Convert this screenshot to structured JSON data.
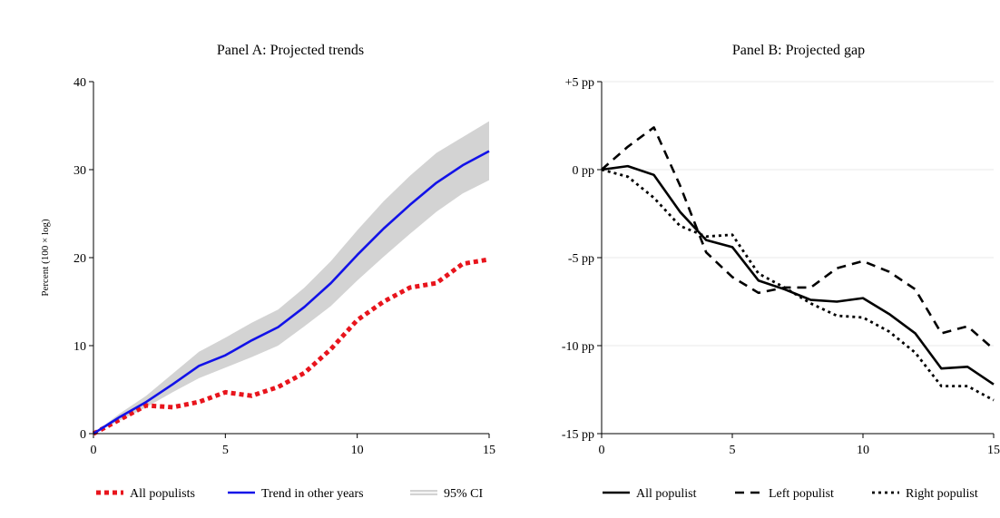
{
  "chart_data": [
    {
      "type": "line",
      "title": "Panel A: Projected trends",
      "xlabel": "",
      "ylabel": "Percent (100 × log)",
      "xlim": [
        0,
        15
      ],
      "ylim": [
        0,
        40
      ],
      "x_ticks": [
        "0",
        "5",
        "10",
        "15"
      ],
      "y_ticks": [
        "0",
        "10",
        "20",
        "30",
        "40"
      ],
      "legend_position": "bottom",
      "x": [
        0,
        1,
        2,
        3,
        4,
        5,
        6,
        7,
        8,
        9,
        10,
        11,
        12,
        13,
        14,
        15
      ],
      "series": [
        {
          "name": "All populists",
          "style": "dotted-thick",
          "color": "#e8141c",
          "values": [
            0,
            1.6,
            3.2,
            3.0,
            3.6,
            4.7,
            4.3,
            5.3,
            6.9,
            9.6,
            12.9,
            15.0,
            16.6,
            17.1,
            19.3,
            19.8
          ]
        },
        {
          "name": "Trend in other years",
          "style": "solid",
          "color": "#1212e8",
          "values": [
            0,
            1.9,
            3.6,
            5.6,
            7.7,
            8.9,
            10.6,
            12.1,
            14.4,
            17.1,
            20.3,
            23.3,
            26.0,
            28.5,
            30.5,
            32.1
          ]
        },
        {
          "name": "95% CI",
          "style": "band",
          "color": "#d3d3d3",
          "lower": [
            0,
            1.5,
            3.0,
            4.7,
            6.3,
            7.5,
            8.7,
            10.0,
            12.2,
            14.5,
            17.4,
            20.1,
            22.7,
            25.2,
            27.3,
            28.8
          ],
          "upper": [
            0,
            2.3,
            4.3,
            6.8,
            9.3,
            10.9,
            12.6,
            14.1,
            16.6,
            19.6,
            23.1,
            26.4,
            29.3,
            31.9,
            33.7,
            35.5
          ]
        }
      ]
    },
    {
      "type": "line",
      "title": "Panel B: Projected gap",
      "xlabel": "",
      "ylabel": "",
      "xlim": [
        0,
        15
      ],
      "ylim": [
        -15,
        5
      ],
      "x_ticks": [
        "0",
        "5",
        "10",
        "15"
      ],
      "y_ticks": [
        "+5 pp",
        "0 pp",
        "-5 pp",
        "-10 pp",
        "-15 pp"
      ],
      "grid": true,
      "legend_position": "bottom",
      "x": [
        0,
        1,
        2,
        3,
        4,
        5,
        6,
        7,
        8,
        9,
        10,
        11,
        12,
        13,
        14,
        15
      ],
      "series": [
        {
          "name": "All populist",
          "style": "solid",
          "color": "#000000",
          "values": [
            0,
            0.2,
            -0.3,
            -2.4,
            -4.0,
            -4.4,
            -6.3,
            -6.8,
            -7.4,
            -7.5,
            -7.3,
            -8.2,
            -9.3,
            -11.3,
            -11.2,
            -12.2
          ]
        },
        {
          "name": "Left populist",
          "style": "dashed",
          "color": "#000000",
          "values": [
            0,
            1.3,
            2.4,
            -0.9,
            -4.7,
            -6.1,
            -7.0,
            -6.7,
            -6.7,
            -5.6,
            -5.2,
            -5.8,
            -6.8,
            -9.3,
            -8.9,
            -10.2
          ]
        },
        {
          "name": "Right populist",
          "style": "dotted",
          "color": "#000000",
          "values": [
            0,
            -0.4,
            -1.6,
            -3.2,
            -3.8,
            -3.7,
            -5.9,
            -6.7,
            -7.6,
            -8.3,
            -8.4,
            -9.2,
            -10.4,
            -12.3,
            -12.3,
            -13.1
          ]
        }
      ]
    }
  ]
}
